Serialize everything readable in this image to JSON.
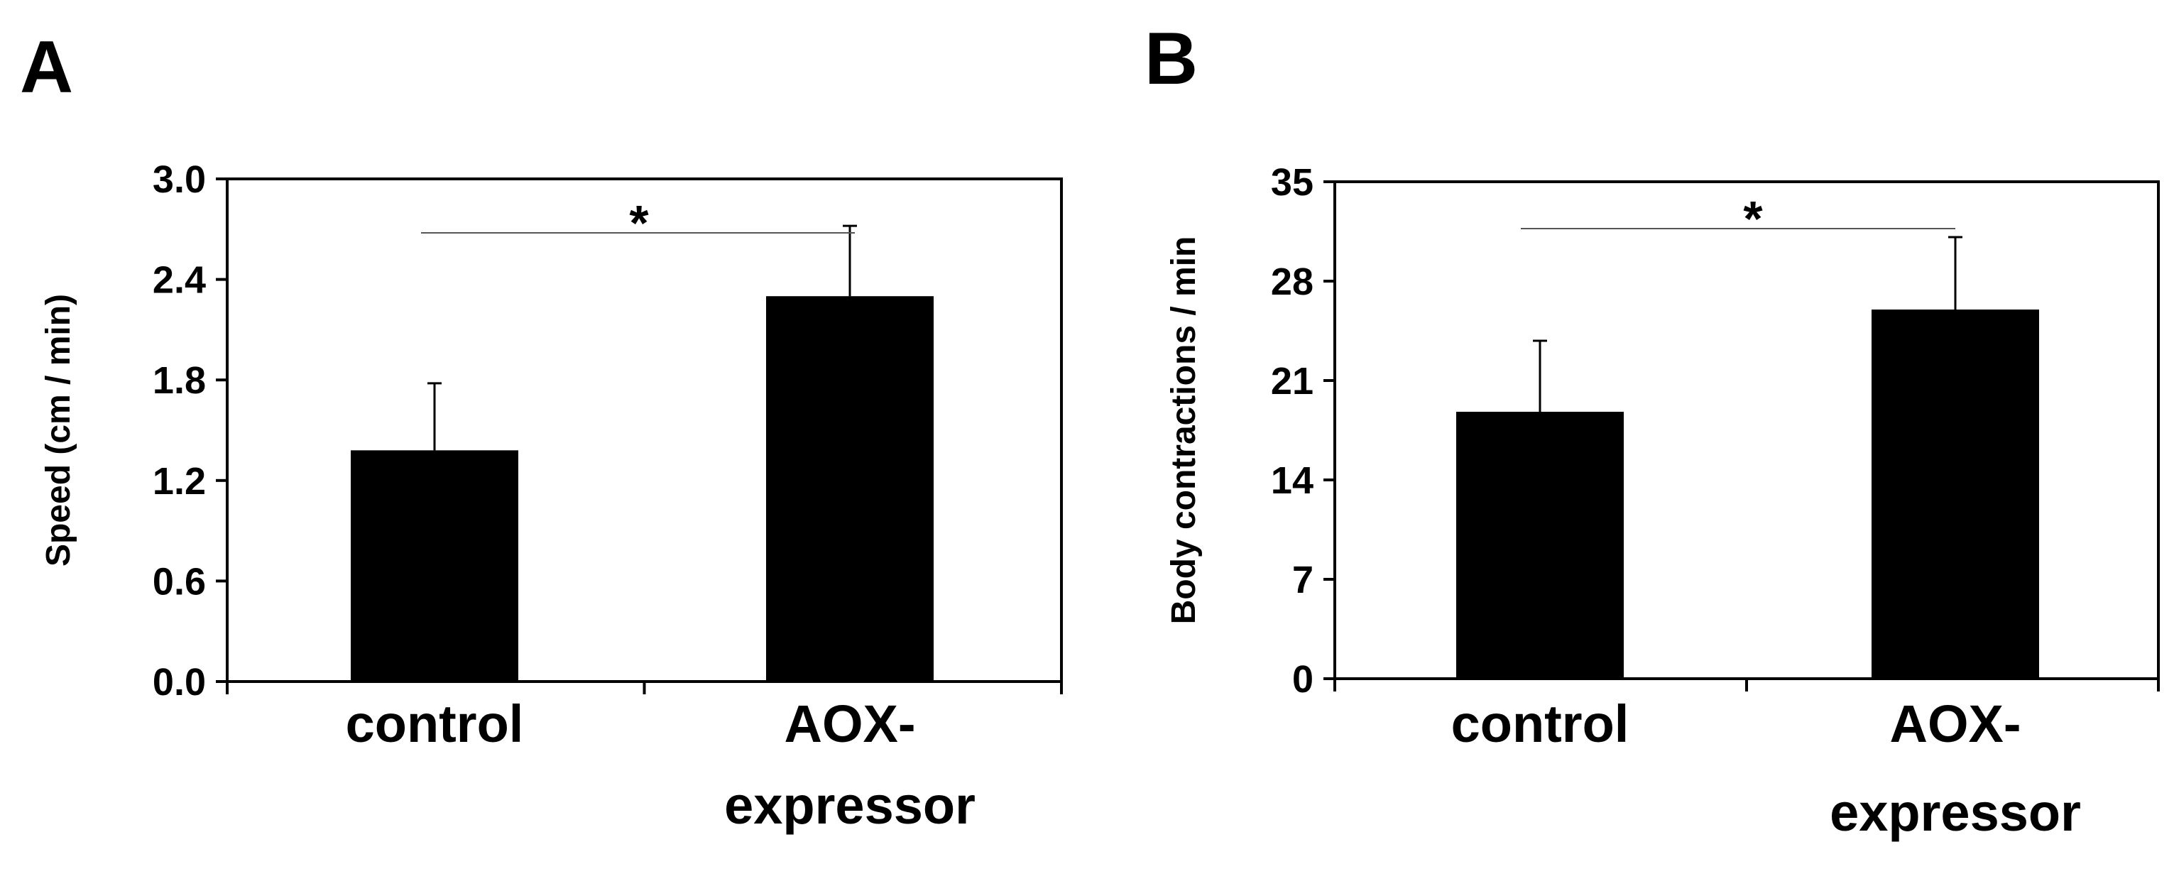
{
  "chart_data": [
    {
      "type": "bar",
      "panel": "A",
      "categories": [
        "control",
        "AOX-\nexpressor"
      ],
      "values": [
        1.38,
        2.3
      ],
      "errors": [
        0.4,
        0.42
      ],
      "ylabel": "Speed (cm / min)",
      "xlabel": "",
      "ylim": [
        0,
        3.0
      ],
      "yticks": [
        "0.0",
        "0.6",
        "1.2",
        "1.8",
        "2.4",
        "3.0"
      ],
      "significance": {
        "between": [
          0,
          1
        ],
        "label": "*"
      },
      "bar_color": "#000000",
      "grid": false
    },
    {
      "type": "bar",
      "panel": "B",
      "categories": [
        "control",
        "AOX-\nexpressor"
      ],
      "values": [
        18.8,
        26
      ],
      "errors": [
        5,
        5.1
      ],
      "ylabel": "Body contractions / min",
      "xlabel": "",
      "ylim": [
        0,
        35
      ],
      "yticks": [
        "0",
        "7",
        "14",
        "21",
        "28",
        "35"
      ],
      "significance": {
        "between": [
          0,
          1
        ],
        "label": "*"
      },
      "bar_color": "#000000",
      "grid": false
    }
  ]
}
